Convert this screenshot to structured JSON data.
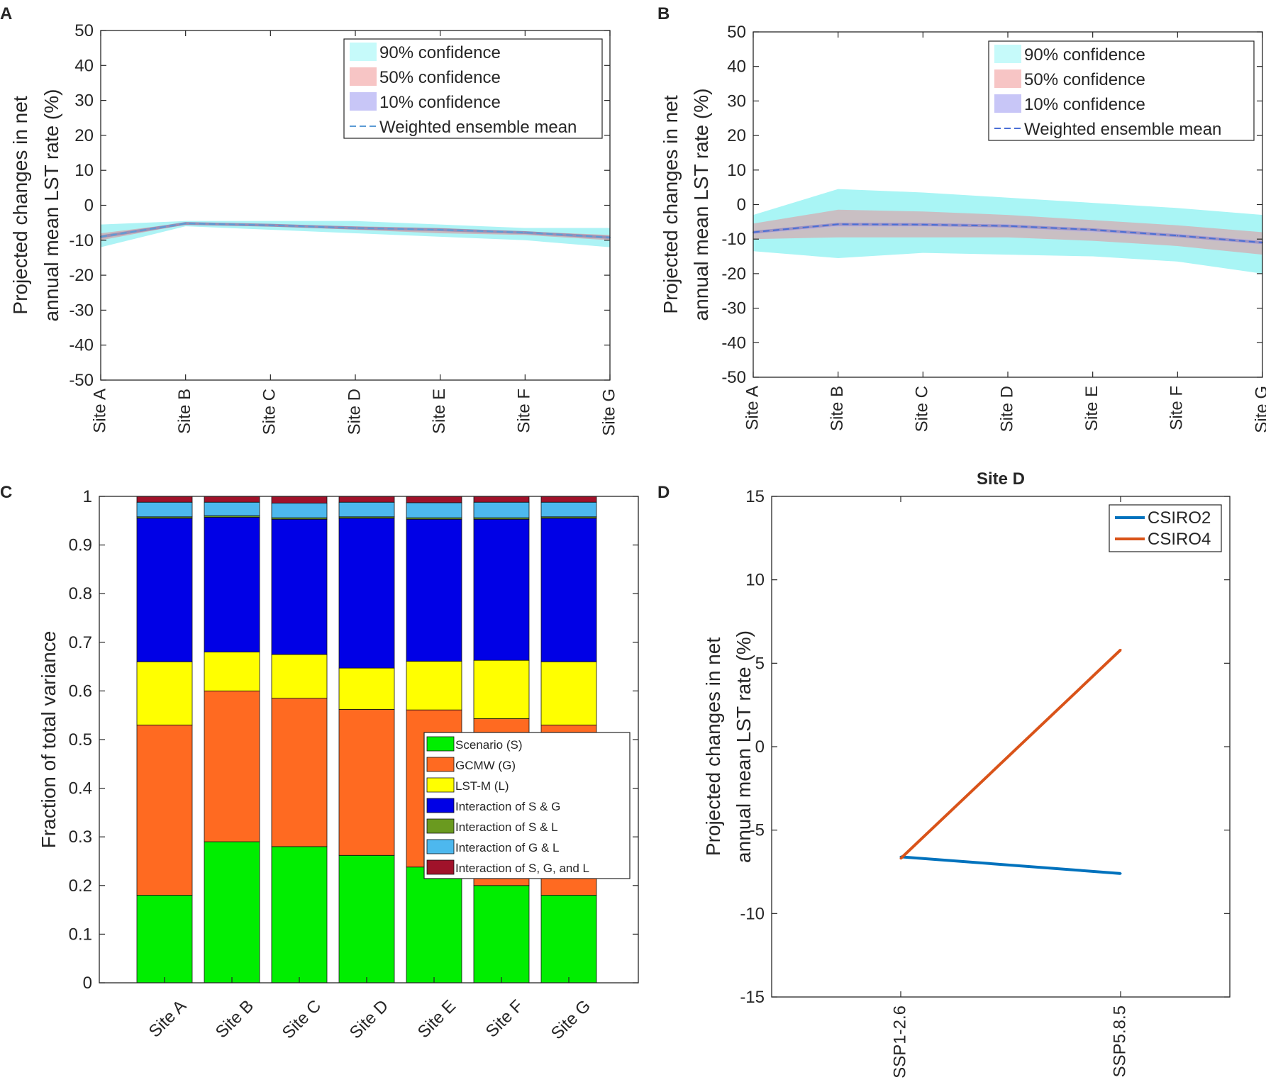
{
  "chart_data": [
    {
      "panel": "A",
      "type": "area",
      "categories": [
        "Site A",
        "Site B",
        "Site C",
        "Site D",
        "Site E",
        "Site F",
        "Site G"
      ],
      "ylabel": [
        "Projected changes in net",
        "annual mean LST rate (%)"
      ],
      "ylim": [
        -50,
        50
      ],
      "yticks": [
        -50,
        -40,
        -30,
        -20,
        -10,
        0,
        10,
        20,
        30,
        40,
        50
      ],
      "band90": {
        "lower": [
          -12,
          -6,
          -7,
          -8,
          -9,
          -10,
          -12
        ],
        "upper": [
          -5.5,
          -4.5,
          -4.5,
          -4.5,
          -5.5,
          -6.5,
          -6.5
        ]
      },
      "band50": {
        "lower": [
          -10,
          -5.5,
          -6,
          -7,
          -8,
          -8.5,
          -10
        ],
        "upper": [
          -8,
          -5,
          -5.5,
          -6,
          -6.5,
          -7.5,
          -8.5
        ]
      },
      "band10": {
        "lower": [
          -9.3,
          -5.3,
          -5.8,
          -6.6,
          -7.2,
          -8,
          -9.3
        ],
        "upper": [
          -8.7,
          -5,
          -5.6,
          -6.3,
          -6.9,
          -7.7,
          -9
        ]
      },
      "series": [
        {
          "name": "Weighted ensemble mean",
          "values": [
            -9,
            -5.2,
            -5.7,
            -6.5,
            -7,
            -7.8,
            -9.2
          ]
        }
      ],
      "legend": [
        "90% confidence",
        "50% confidence",
        "10% confidence",
        "Weighted ensemble mean"
      ],
      "legend_position": "top-right",
      "colors": {
        "band90": "#adf3f5",
        "band50": "#c7b9bf",
        "band10": "#c0b7d9",
        "mean": "#5b9bd5",
        "mean_band": "#9c8fb5",
        "sw90": "#c6fafa",
        "sw50": "#f7c5c5",
        "sw10": "#c8c6f7"
      }
    },
    {
      "panel": "B",
      "type": "area",
      "categories": [
        "Site A",
        "Site B",
        "Site C",
        "Site D",
        "Site E",
        "Site F",
        "Site G"
      ],
      "ylabel": [
        "Projected changes in net",
        "annual mean LST rate (%)"
      ],
      "ylim": [
        -50,
        50
      ],
      "yticks": [
        -50,
        -40,
        -30,
        -20,
        -10,
        0,
        10,
        20,
        30,
        40,
        50
      ],
      "band90": {
        "lower": [
          -13.5,
          -15.5,
          -14,
          -14.5,
          -15,
          -16.5,
          -20
        ],
        "upper": [
          -3,
          4.5,
          3.5,
          2,
          0.5,
          -1,
          -3
        ]
      },
      "band50": {
        "lower": [
          -10,
          -9.5,
          -9.5,
          -9.5,
          -10.5,
          -12,
          -14.5
        ],
        "upper": [
          -5.5,
          -1.5,
          -2,
          -3,
          -4.5,
          -6,
          -8
        ]
      },
      "band10": {
        "lower": [
          -8.6,
          -6.4,
          -6.4,
          -6.8,
          -8,
          -9.6,
          -11.6
        ],
        "upper": [
          -7.6,
          -5.2,
          -5.2,
          -5.6,
          -6.8,
          -8.4,
          -10.4
        ]
      },
      "series": [
        {
          "name": "Weighted ensemble mean",
          "values": [
            -8,
            -5.7,
            -5.8,
            -6.2,
            -7.3,
            -9,
            -11
          ]
        }
      ],
      "legend": [
        "90% confidence",
        "50% confidence",
        "10% confidence",
        "Weighted ensemble mean"
      ],
      "legend_position": "top-right",
      "colors": {
        "band90": "#a9f5f5",
        "band50": "#c9bfc3",
        "band10": "#c0b7d9",
        "mean": "#4a6fd6",
        "mean_band": "#9e93c0",
        "sw90": "#c6fafa",
        "sw50": "#f7c5c5",
        "sw10": "#c8c6f7"
      }
    },
    {
      "panel": "C",
      "type": "bar",
      "stacked": true,
      "categories": [
        "Site A",
        "Site B",
        "Site C",
        "Site D",
        "Site E",
        "Site F",
        "Site G"
      ],
      "ylabel": "Fraction of total variance",
      "ylim": [
        0,
        1
      ],
      "yticks": [
        0,
        0.1,
        0.2,
        0.3,
        0.4,
        0.5,
        0.6,
        0.7,
        0.8,
        0.9,
        1
      ],
      "series": [
        {
          "name": "Scenario (S)",
          "color": "#00ee00",
          "values": [
            0.18,
            0.29,
            0.28,
            0.262,
            0.238,
            0.2,
            0.18
          ]
        },
        {
          "name": "GCMW (G)",
          "color": "#ff6a21",
          "values": [
            0.35,
            0.31,
            0.305,
            0.3,
            0.323,
            0.343,
            0.35
          ]
        },
        {
          "name": "LST-M (L)",
          "color": "#ffff00",
          "values": [
            0.13,
            0.08,
            0.09,
            0.085,
            0.1,
            0.12,
            0.13
          ]
        },
        {
          "name": "Interaction of S & G",
          "color": "#0000e6",
          "values": [
            0.295,
            0.277,
            0.278,
            0.308,
            0.292,
            0.29,
            0.295
          ]
        },
        {
          "name": "Interaction of S & L",
          "color": "#6a9a1f",
          "values": [
            0.003,
            0.003,
            0.003,
            0.003,
            0.003,
            0.003,
            0.003
          ]
        },
        {
          "name": "Interaction of G & L",
          "color": "#4db8ee",
          "values": [
            0.03,
            0.028,
            0.03,
            0.03,
            0.031,
            0.032,
            0.03
          ]
        },
        {
          "name": "Interaction of S, G, and L",
          "color": "#a0122a",
          "values": [
            0.012,
            0.012,
            0.014,
            0.012,
            0.013,
            0.012,
            0.012
          ]
        }
      ],
      "legend_position": "center-right"
    },
    {
      "panel": "D",
      "type": "line",
      "title": "Site D",
      "categories": [
        "SSP1-2.6",
        "SSP5.8.5"
      ],
      "ylabel": [
        "Projected changes in net",
        "annual mean LST rate (%)"
      ],
      "ylim": [
        -15,
        15
      ],
      "yticks": [
        -15,
        -10,
        -5,
        0,
        5,
        10,
        15
      ],
      "series": [
        {
          "name": "CSIRO2",
          "color": "#0072bd",
          "values": [
            -6.6,
            -7.6
          ]
        },
        {
          "name": "CSIRO4",
          "color": "#d95319",
          "values": [
            -6.7,
            5.8
          ]
        }
      ],
      "legend_position": "top-right"
    }
  ]
}
